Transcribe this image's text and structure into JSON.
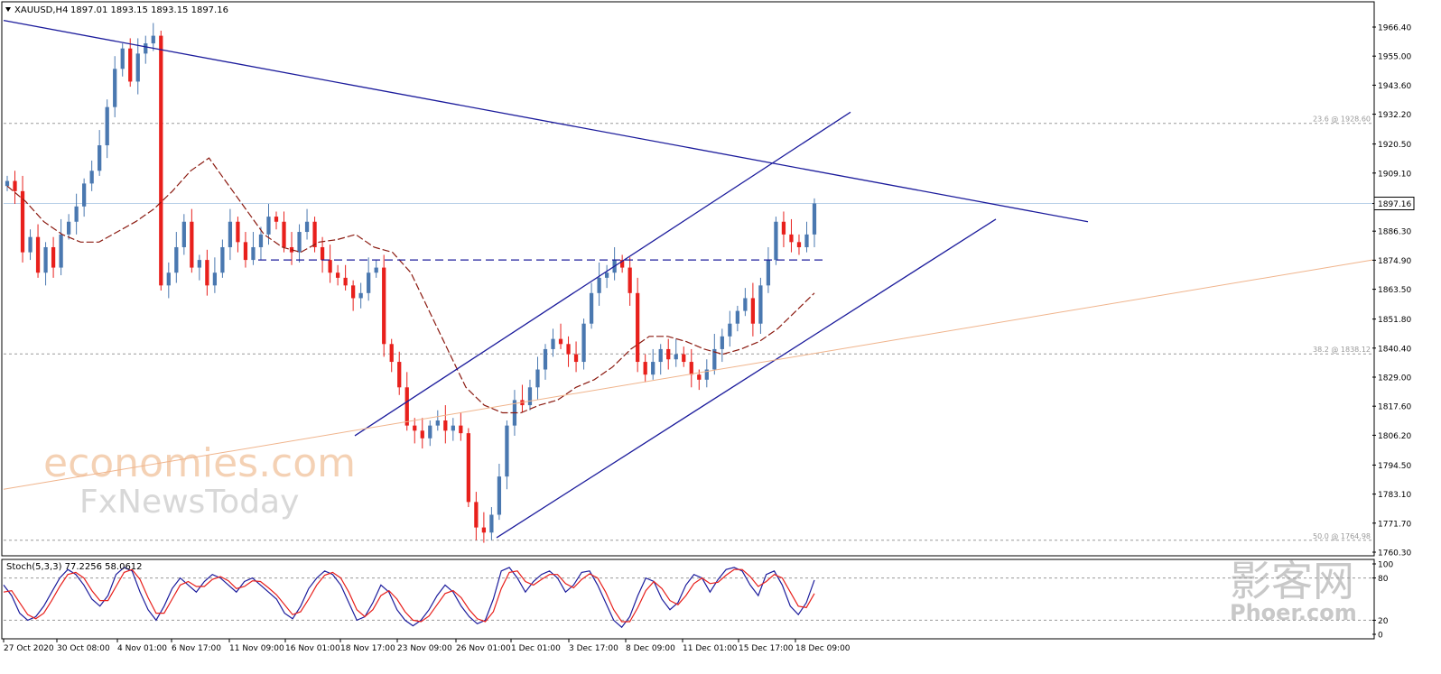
{
  "header": {
    "symbol_label": "XAUUSD,H4",
    "ohlc_label": "1897.01 1893.15 1893.15 1897.16"
  },
  "watermarks": {
    "line1": "economies.com",
    "line2": "FxNewsToday",
    "cn_logo": "影客网",
    "cn_domain": "Phoer.com"
  },
  "colors": {
    "bull": "#4a78b0",
    "bear": "#e8201c",
    "ma": "#8b1a10",
    "trendline": "#1c1c9c",
    "fib_line": "#f0b48c",
    "stoch_main": "#1c1c9c",
    "stoch_signal": "#e8201c",
    "grid_dash": "#9a9a9a",
    "price_tag_bg": "#ffffff"
  },
  "chart_data": [
    {
      "type": "candlestick",
      "title": "XAUUSD,H4",
      "ylim": [
        1760.3,
        1977.5
      ],
      "y_ticks": [
        "1966.40",
        "1955.00",
        "1943.60",
        "1932.20",
        "1920.50",
        "1909.10",
        "1897.16",
        "1886.30",
        "1874.90",
        "1863.50",
        "1851.80",
        "1840.40",
        "1829.00",
        "1817.60",
        "1806.20",
        "1794.50",
        "1783.10",
        "1771.70",
        "1760.30"
      ],
      "current_price": "1897.16",
      "x_labels": [
        "27 Oct 2020",
        "30 Oct 08:00",
        "4 Nov 01:00",
        "6 Nov 17:00",
        "11 Nov 09:00",
        "16 Nov 01:00",
        "18 Nov 17:00",
        "23 Nov 09:00",
        "26 Nov 01:00",
        "1 Dec 01:00",
        "3 Dec 17:00",
        "8 Dec 09:00",
        "11 Dec 01:00",
        "15 Dec 17:00",
        "18 Dec 09:00"
      ],
      "fib_levels": [
        {
          "label": "23.6 @ 1928.60",
          "price": 1928.6
        },
        {
          "label": "38.2 @ 1838.12",
          "price": 1838.12
        },
        {
          "label": "50.0 @ 1764.98",
          "price": 1764.98
        }
      ],
      "resistance_level": 1875.0,
      "close_path": [
        1906,
        1902,
        1878,
        1884,
        1870,
        1880,
        1872,
        1885,
        1890,
        1896,
        1905,
        1910,
        1920,
        1935,
        1950,
        1958,
        1945,
        1956,
        1960,
        1963,
        1865,
        1870,
        1880,
        1890,
        1872,
        1875,
        1865,
        1870,
        1880,
        1890,
        1882,
        1875,
        1880,
        1885,
        1892,
        1890,
        1880,
        1878,
        1886,
        1890,
        1880,
        1875,
        1870,
        1868,
        1865,
        1860,
        1862,
        1870,
        1872,
        1842,
        1835,
        1825,
        1810,
        1808,
        1805,
        1810,
        1812,
        1808,
        1810,
        1807,
        1780,
        1770,
        1768,
        1775,
        1790,
        1810,
        1820,
        1818,
        1825,
        1832,
        1840,
        1844,
        1842,
        1838,
        1835,
        1850,
        1862,
        1868,
        1870,
        1875,
        1872,
        1862,
        1835,
        1830,
        1835,
        1840,
        1836,
        1838,
        1835,
        1830,
        1828,
        1832,
        1840,
        1845,
        1850,
        1855,
        1860,
        1850,
        1865,
        1875,
        1890,
        1885,
        1882,
        1880,
        1885,
        1897.16
      ],
      "ma_path": [
        1904,
        1898,
        1890,
        1885,
        1882,
        1882,
        1886,
        1890,
        1895,
        1902,
        1910,
        1915,
        1905,
        1895,
        1885,
        1880,
        1878,
        1882,
        1883,
        1885,
        1880,
        1878,
        1870,
        1855,
        1840,
        1825,
        1818,
        1815,
        1815,
        1818,
        1820,
        1825,
        1828,
        1833,
        1840,
        1845,
        1845,
        1843,
        1840,
        1838,
        1840,
        1843,
        1848,
        1855,
        1862
      ],
      "trendlines": [
        {
          "name": "descending resistance",
          "from": [
            "27 Oct 2020",
            1969
          ],
          "to": [
            "22 Dec",
            1890
          ]
        },
        {
          "name": "channel upper",
          "from": [
            "23 Nov",
            1806
          ],
          "to": [
            "18 Dec",
            1933
          ]
        },
        {
          "name": "channel lower",
          "from": [
            "30 Nov",
            1766
          ],
          "to": [
            "21 Dec",
            1891
          ]
        },
        {
          "name": "long-term support",
          "from": [
            "27 Oct 2020",
            1785
          ],
          "to": [
            "28 Dec",
            1875
          ]
        }
      ]
    },
    {
      "type": "line",
      "title": "Stoch(5,3,3) 77.2256 58.0612",
      "ylim": [
        0,
        100
      ],
      "y_ticks": [
        "100",
        "80",
        "20",
        "0"
      ],
      "levels": [
        80,
        20
      ],
      "series": [
        {
          "name": "main",
          "values": [
            70,
            55,
            30,
            20,
            25,
            40,
            60,
            80,
            92,
            85,
            70,
            50,
            40,
            55,
            85,
            95,
            90,
            60,
            35,
            20,
            40,
            65,
            80,
            70,
            60,
            75,
            85,
            80,
            70,
            60,
            75,
            80,
            70,
            60,
            50,
            30,
            22,
            40,
            65,
            80,
            90,
            85,
            70,
            45,
            20,
            25,
            45,
            70,
            60,
            35,
            20,
            12,
            20,
            35,
            55,
            70,
            60,
            40,
            25,
            15,
            20,
            50,
            90,
            95,
            80,
            60,
            75,
            85,
            90,
            80,
            60,
            70,
            88,
            90,
            70,
            45,
            20,
            10,
            25,
            55,
            80,
            75,
            50,
            35,
            45,
            70,
            85,
            80,
            60,
            78,
            92,
            95,
            90,
            70,
            55,
            85,
            90,
            70,
            40,
            28,
            45,
            77
          ]
        },
        {
          "name": "signal",
          "values": [
            60,
            62,
            45,
            28,
            22,
            30,
            48,
            68,
            85,
            88,
            80,
            62,
            48,
            48,
            68,
            88,
            92,
            78,
            52,
            30,
            30,
            50,
            70,
            75,
            68,
            68,
            78,
            82,
            76,
            65,
            68,
            76,
            75,
            66,
            56,
            42,
            28,
            32,
            50,
            70,
            84,
            88,
            80,
            60,
            35,
            25,
            35,
            55,
            62,
            50,
            32,
            20,
            18,
            26,
            42,
            58,
            62,
            52,
            35,
            22,
            18,
            32,
            65,
            88,
            90,
            75,
            70,
            78,
            85,
            85,
            72,
            66,
            78,
            86,
            80,
            60,
            35,
            18,
            18,
            38,
            62,
            75,
            65,
            48,
            42,
            55,
            72,
            80,
            72,
            74,
            84,
            92,
            92,
            82,
            68,
            75,
            85,
            80,
            60,
            40,
            38,
            58
          ]
        }
      ]
    }
  ]
}
